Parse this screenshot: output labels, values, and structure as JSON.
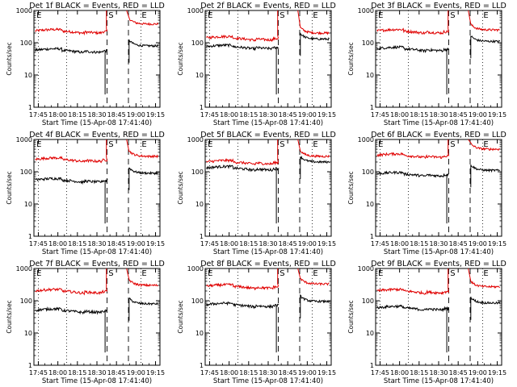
{
  "chart_data": {
    "type": "line",
    "layout": "3x3 grid",
    "ylabel": "Counts/sec",
    "xlabel": "Start Time (15-Apr-08 17:41:40)",
    "x_ticks": [
      "17:45",
      "18:00",
      "18:15",
      "18:30",
      "18:45",
      "19:00",
      "19:15"
    ],
    "y_ticks": [
      "1",
      "10",
      "100",
      "1000"
    ],
    "y_scale": "log",
    "ylim": [
      1,
      1000
    ],
    "colors": {
      "events": "#000000",
      "lld": "#e00000"
    },
    "panels": [
      {
        "title": "Det 1f BLACK = Events, RED = LLD",
        "lld_base": 230,
        "ev_base": 58,
        "lld_post": 380,
        "ev_post": 80,
        "e_drop": true,
        "s_spike": true,
        "notch": true,
        "post_marker": "E"
      },
      {
        "title": "Det 2f BLACK = Events, RED = LLD",
        "lld_base": 140,
        "ev_base": 75,
        "lld_post": 200,
        "ev_post": 130,
        "e_drop": false,
        "s_spike": true,
        "notch": false,
        "post_marker": "E"
      },
      {
        "title": "Det 3f BLACK = Events, RED = LLD",
        "lld_base": 230,
        "ev_base": 65,
        "lld_post": 250,
        "ev_post": 110,
        "e_drop": false,
        "s_spike": false,
        "notch": false,
        "post_marker": "E"
      },
      {
        "title": "Det 4f BLACK = Events, RED = LLD",
        "lld_base": 240,
        "ev_base": 55,
        "lld_post": 300,
        "ev_post": 90,
        "e_drop": false,
        "s_spike": true,
        "notch": false,
        "post_marker": "E"
      },
      {
        "title": "Det 5f BLACK = Events, RED = LLD",
        "lld_base": 200,
        "ev_base": 130,
        "lld_post": 300,
        "ev_post": 200,
        "e_drop": false,
        "s_spike": true,
        "notch": false,
        "post_marker": "E"
      },
      {
        "title": "Det 6f BLACK = Events, RED = LLD",
        "lld_base": 320,
        "ev_base": 85,
        "lld_post": 500,
        "ev_post": 110,
        "e_drop": false,
        "s_spike": false,
        "notch": false,
        "post_marker": "E"
      },
      {
        "title": "Det 7f BLACK = Events, RED = LLD",
        "lld_base": 200,
        "ev_base": 50,
        "lld_post": 300,
        "ev_post": 80,
        "e_drop": false,
        "s_spike": true,
        "notch": false,
        "post_marker": "E"
      },
      {
        "title": "Det 8f BLACK = Events, RED = LLD",
        "lld_base": 280,
        "ev_base": 75,
        "lld_post": 330,
        "ev_post": 95,
        "e_drop": false,
        "s_spike": true,
        "notch": false,
        "post_marker": "E"
      },
      {
        "title": "Det 9f BLACK = Events, RED = LLD",
        "lld_base": 200,
        "ev_base": 60,
        "lld_post": 270,
        "ev_post": 85,
        "e_drop": false,
        "s_spike": false,
        "notch": false,
        "post_marker": "E"
      }
    ],
    "markers": {
      "start": "E",
      "saa": "S",
      "end": "E"
    },
    "grid": false
  }
}
